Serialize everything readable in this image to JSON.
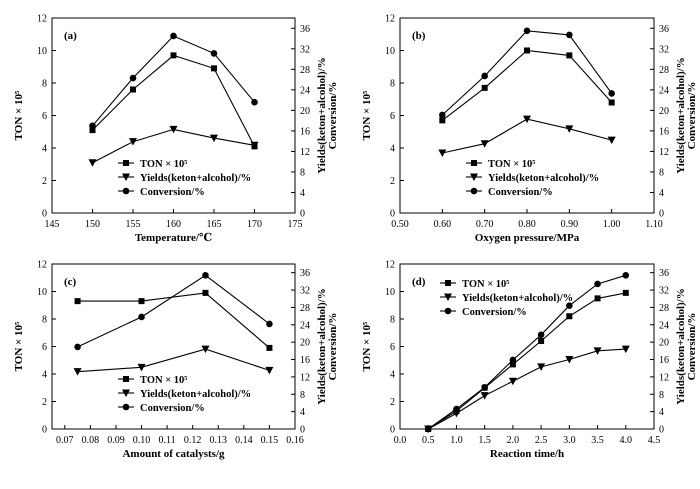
{
  "chart_data": [
    {
      "type": "line",
      "panel_label": "(a)",
      "xlabel": "Temperature/℃",
      "ylabel_left": "TON × 10⁵",
      "ylabel_right_1": "Yields(keton+alcohol)/%",
      "ylabel_right_2": "Conversion/%",
      "xlim": [
        145,
        175
      ],
      "xticks": [
        145,
        150,
        155,
        160,
        165,
        170,
        175
      ],
      "ylim_left": [
        0,
        12
      ],
      "yticks_left": [
        0,
        2,
        4,
        6,
        8,
        10,
        12
      ],
      "ylim_right": [
        0,
        38
      ],
      "yticks_right": [
        0,
        4,
        8,
        12,
        16,
        20,
        24,
        28,
        32,
        36
      ],
      "legend_position": "bottom-center",
      "grid": false,
      "x": [
        150,
        155,
        160,
        165,
        170
      ],
      "series": [
        {
          "name": "TON × 10⁵",
          "marker": "square",
          "axis": "left",
          "values": [
            5.1,
            7.6,
            9.7,
            8.9,
            4.1
          ]
        },
        {
          "name": "Yields(keton+alcohol)/%",
          "marker": "triangle-down",
          "axis": "right",
          "values": [
            9.8,
            13.9,
            16.3,
            14.6,
            13.2
          ]
        },
        {
          "name": "Conversion/%",
          "marker": "circle",
          "axis": "right",
          "values": [
            17.0,
            26.3,
            34.5,
            31.1,
            21.6
          ]
        }
      ]
    },
    {
      "type": "line",
      "panel_label": "(b)",
      "xlabel": "Oxygen pressure/MPa",
      "ylabel_left": "TON × 10⁵",
      "ylabel_right_1": "Yields(keton+alcohol)/%",
      "ylabel_right_2": "Conversion/%",
      "xlim": [
        0.5,
        1.1
      ],
      "xticks": [
        0.5,
        0.6,
        0.7,
        0.8,
        0.9,
        1.0,
        1.1
      ],
      "ylim_left": [
        0,
        12
      ],
      "yticks_left": [
        0,
        2,
        4,
        6,
        8,
        10,
        12
      ],
      "ylim_right": [
        0,
        38
      ],
      "yticks_right": [
        0,
        4,
        8,
        12,
        16,
        20,
        24,
        28,
        32,
        36
      ],
      "legend_position": "bottom-center",
      "grid": false,
      "x": [
        0.6,
        0.7,
        0.8,
        0.9,
        1.0
      ],
      "series": [
        {
          "name": "TON × 10⁵",
          "marker": "square",
          "axis": "left",
          "values": [
            5.7,
            7.7,
            10.0,
            9.7,
            6.8
          ]
        },
        {
          "name": "Yields(keton+alcohol)/%",
          "marker": "triangle-down",
          "axis": "right",
          "values": [
            11.7,
            13.5,
            18.3,
            16.4,
            14.2
          ]
        },
        {
          "name": "Conversion/%",
          "marker": "circle",
          "axis": "right",
          "values": [
            19.1,
            26.7,
            35.5,
            34.7,
            23.3
          ]
        }
      ]
    },
    {
      "type": "line",
      "panel_label": "(c)",
      "xlabel": "Amount of catalysts/g",
      "ylabel_left": "TON × 10⁵",
      "ylabel_right_1": "Yields(keton+alcohol)/%",
      "ylabel_right_2": "Conversion/%",
      "xlim": [
        0.065,
        0.16
      ],
      "xticks": [
        0.07,
        0.08,
        0.09,
        0.1,
        0.11,
        0.12,
        0.13,
        0.14,
        0.15,
        0.16
      ],
      "ylim_left": [
        0,
        12
      ],
      "yticks_left": [
        0,
        2,
        4,
        6,
        8,
        10,
        12
      ],
      "ylim_right": [
        0,
        38
      ],
      "yticks_right": [
        0,
        4,
        8,
        12,
        16,
        20,
        24,
        28,
        32,
        36
      ],
      "legend_position": "bottom-center",
      "grid": false,
      "x": [
        0.075,
        0.1,
        0.125,
        0.15
      ],
      "series": [
        {
          "name": "TON × 10⁵",
          "marker": "square",
          "axis": "left",
          "values": [
            9.3,
            9.3,
            9.9,
            5.9
          ]
        },
        {
          "name": "Yields(keton+alcohol)/%",
          "marker": "triangle-down",
          "axis": "right",
          "values": [
            13.2,
            14.2,
            18.4,
            13.5
          ]
        },
        {
          "name": "Conversion/%",
          "marker": "circle",
          "axis": "right",
          "values": [
            18.9,
            25.8,
            35.4,
            24.2
          ]
        }
      ]
    },
    {
      "type": "line",
      "panel_label": "(d)",
      "xlabel": "Reaction time/h",
      "ylabel_left": "TON × 10⁵",
      "ylabel_right_1": "Yields(keton+alcohol)/%",
      "ylabel_right_2": "Conversion/%",
      "xlim": [
        0.0,
        4.5
      ],
      "xticks": [
        0.0,
        0.5,
        1.0,
        1.5,
        2.0,
        2.5,
        3.0,
        3.5,
        4.0,
        4.5
      ],
      "ylim_left": [
        0,
        12
      ],
      "yticks_left": [
        0,
        2,
        4,
        6,
        8,
        10,
        12
      ],
      "ylim_right": [
        0,
        38
      ],
      "yticks_right": [
        0,
        4,
        8,
        12,
        16,
        20,
        24,
        28,
        32,
        36
      ],
      "legend_position": "top-left",
      "grid": false,
      "x": [
        0.5,
        1.0,
        1.5,
        2.0,
        2.5,
        3.0,
        3.5,
        4.0
      ],
      "series": [
        {
          "name": "TON × 10⁵",
          "marker": "square",
          "axis": "left",
          "values": [
            0.0,
            1.3,
            3.0,
            4.7,
            6.4,
            8.2,
            9.5,
            9.9
          ]
        },
        {
          "name": "Yields(keton+alcohol)/%",
          "marker": "triangle-down",
          "axis": "right",
          "values": [
            0.0,
            3.6,
            7.7,
            11.0,
            14.3,
            16.0,
            18.0,
            18.4
          ]
        },
        {
          "name": "Conversion/%",
          "marker": "circle",
          "axis": "right",
          "values": [
            0.0,
            4.6,
            9.6,
            15.9,
            21.7,
            28.4,
            33.4,
            35.4
          ]
        }
      ]
    }
  ]
}
